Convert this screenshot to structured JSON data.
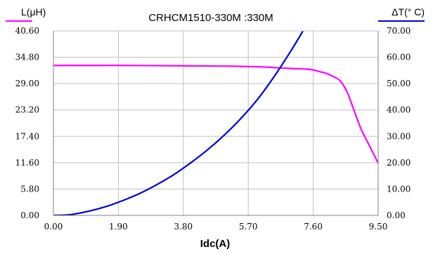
{
  "chart_data": {
    "type": "line",
    "title": "CRHCM1510-330M :330M",
    "xlabel": "Idc(A)",
    "ylabel_left": "L(μH)",
    "ylabel_right": "ΔT(° C)",
    "xlim": [
      0,
      9.5
    ],
    "ylim_left": [
      0,
      40.6
    ],
    "ylim_right": [
      0,
      70
    ],
    "x_ticks": [
      "0.00",
      "1.90",
      "3.80",
      "5.70",
      "7.60",
      "9.50"
    ],
    "y_left_ticks": [
      "0.00",
      "5.80",
      "11.60",
      "17.40",
      "23.20",
      "29.00",
      "34.80",
      "40.60"
    ],
    "y_right_ticks": [
      "0.00",
      "10.00",
      "20.00",
      "30.00",
      "40.00",
      "50.00",
      "60.00",
      "70.00"
    ],
    "grid": true,
    "colors": {
      "inductance": "#ff00ff",
      "temperature": "#0000cc",
      "grid": "#c0c0c0",
      "axes": "#808080"
    },
    "series": [
      {
        "name": "L(μH)",
        "axis": "left",
        "x": [
          0.0,
          1.0,
          2.0,
          3.0,
          4.0,
          5.0,
          6.0,
          6.5,
          7.0,
          7.4,
          7.6,
          7.8,
          8.0,
          8.2,
          8.4,
          8.6,
          8.8,
          9.0,
          9.2,
          9.4,
          9.5
        ],
        "values": [
          33.0,
          33.0,
          33.0,
          32.95,
          32.9,
          32.85,
          32.7,
          32.5,
          32.3,
          32.2,
          32.0,
          31.6,
          31.2,
          30.5,
          29.5,
          27.0,
          23.0,
          19.0,
          16.0,
          13.0,
          11.5
        ]
      },
      {
        "name": "ΔT(° C)",
        "axis": "right",
        "x": [
          0.0,
          0.5,
          1.0,
          1.5,
          2.0,
          2.5,
          3.0,
          3.5,
          4.0,
          4.5,
          5.0,
          5.5,
          6.0,
          6.5,
          7.0,
          7.3
        ],
        "values": [
          0.0,
          0.3,
          1.5,
          3.2,
          5.5,
          8.2,
          11.5,
          15.3,
          19.8,
          24.8,
          30.5,
          37.0,
          44.5,
          53.5,
          63.5,
          70.0
        ]
      }
    ]
  }
}
